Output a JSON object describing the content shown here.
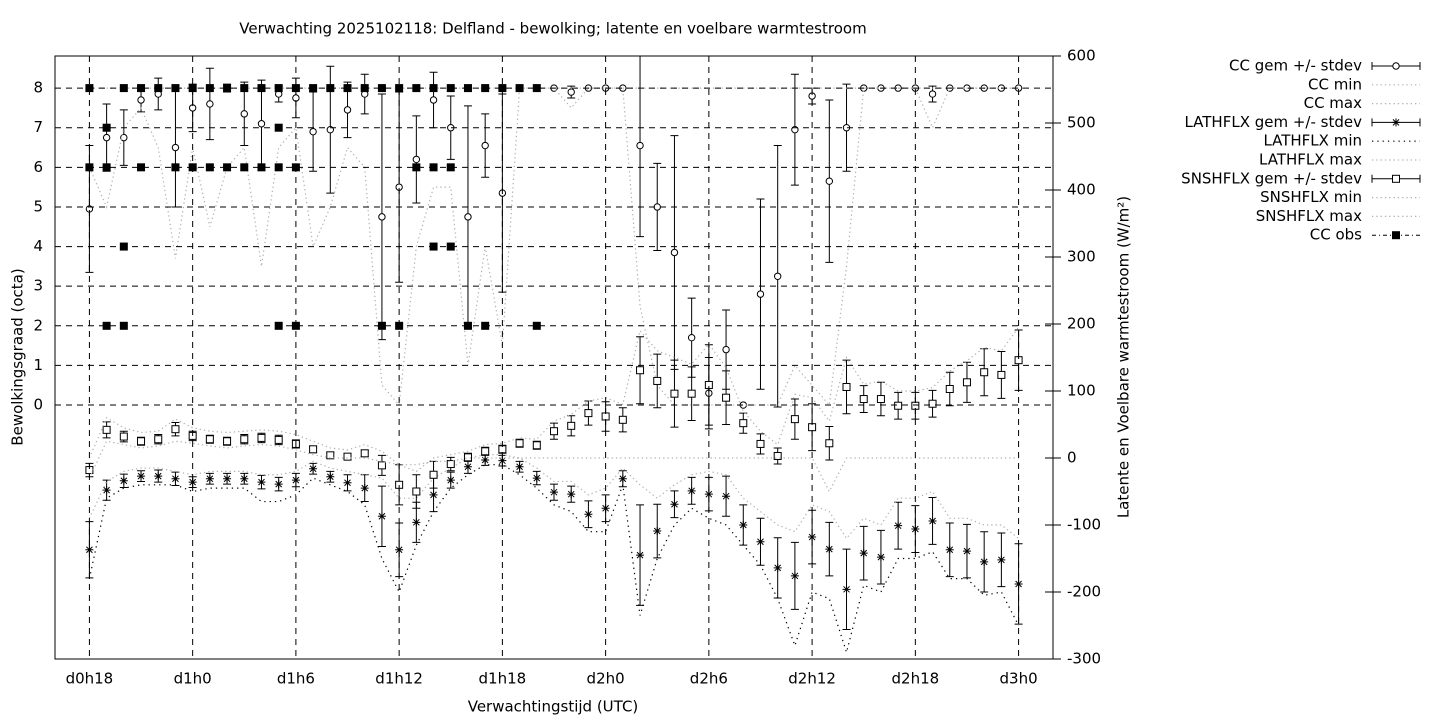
{
  "chart_data": {
    "type": "errorbar",
    "title": "Verwachting 2025102118: Delfland - bewolking; latente en voelbare warmtestroom",
    "xlabel": "Verwachtingstijd (UTC)",
    "ylabel": "Bewolkingsgraad (octa)",
    "y2label": "Latente en Voelbare warmtestroom (W/m²)",
    "x": [
      18,
      19,
      20,
      21,
      22,
      23,
      24,
      25,
      26,
      27,
      28,
      29,
      30,
      31,
      32,
      33,
      34,
      35,
      36,
      37,
      38,
      39,
      40,
      41,
      42,
      43,
      44,
      45,
      46,
      47,
      48,
      49,
      50,
      51,
      52,
      53,
      54,
      55,
      56,
      57,
      58,
      59,
      60,
      61,
      62,
      63,
      64,
      65,
      66,
      67,
      68,
      69,
      70,
      71,
      72
    ],
    "xlim": [
      16,
      74
    ],
    "xticks": [
      {
        "value": 18,
        "label": "d0h18"
      },
      {
        "value": 24,
        "label": "d1h0"
      },
      {
        "value": 30,
        "label": "d1h6"
      },
      {
        "value": 36,
        "label": "d1h12"
      },
      {
        "value": 42,
        "label": "d1h18"
      },
      {
        "value": 48,
        "label": "d2h0"
      },
      {
        "value": 54,
        "label": "d2h6"
      },
      {
        "value": 60,
        "label": "d2h12"
      },
      {
        "value": 66,
        "label": "d2h18"
      },
      {
        "value": 72,
        "label": "d3h0"
      }
    ],
    "ylim": [
      -6.41,
      8.81
    ],
    "yticks": [
      0,
      1,
      2,
      3,
      4,
      5,
      6,
      7,
      8
    ],
    "y2lim": [
      -300,
      600
    ],
    "y2ticks": [
      -300,
      -200,
      -100,
      0,
      100,
      200,
      300,
      400,
      500,
      600
    ],
    "grid": true,
    "legend": "outside-right",
    "series": [
      {
        "name": "CC gem +/- stdev",
        "color": "#000000",
        "style": "errorbars",
        "marker": "circle",
        "axis": "y",
        "values": [
          4.95,
          6.75,
          6.75,
          7.7,
          7.85,
          6.5,
          7.5,
          7.6,
          8,
          7.35,
          7.1,
          7.85,
          7.75,
          6.9,
          6.95,
          7.45,
          7.85,
          4.75,
          5.5,
          6.2,
          7.7,
          7.0,
          4.75,
          6.55,
          5.35,
          8,
          8,
          8,
          7.9,
          8,
          8,
          8,
          6.55,
          5.0,
          3.85,
          1.7,
          0.3,
          1.4,
          0,
          2.8,
          3.25,
          6.95,
          7.8,
          5.65,
          7.0,
          8,
          8,
          8,
          8,
          7.85,
          8,
          8,
          8,
          8,
          8
        ],
        "errors": [
          1.6,
          0.85,
          0.7,
          0.3,
          0.4,
          1.5,
          0.6,
          0.9,
          0.1,
          0.8,
          1.1,
          0.2,
          0.5,
          1.0,
          1.6,
          0.7,
          0.5,
          3.1,
          2.4,
          1.1,
          0.7,
          0.8,
          2.8,
          0.8,
          2.5,
          0,
          0,
          0,
          0.15,
          0,
          0,
          0,
          2.3,
          1.1,
          2.95,
          1.0,
          0.9,
          1.0,
          0,
          2.4,
          3.3,
          1.4,
          0.2,
          2.05,
          1.1,
          0,
          0,
          0,
          0,
          0.2,
          0,
          0,
          0,
          0,
          0
        ]
      },
      {
        "name": "CC min",
        "color": "#b0b0b0",
        "style": "dotted",
        "axis": "y",
        "values": [
          6,
          5,
          7,
          7.5,
          6.5,
          3.7,
          6.5,
          4.5,
          6,
          6.5,
          3.5,
          6.5,
          7,
          4,
          5,
          6.5,
          6,
          0.5,
          0,
          4,
          5.5,
          5.5,
          1,
          4,
          1.5,
          8,
          8,
          8,
          7.5,
          8,
          8,
          8,
          2.5,
          0.5,
          0,
          0,
          0,
          0,
          0,
          0,
          0,
          1,
          0.5,
          0,
          3.5,
          8,
          8,
          8,
          8,
          7,
          8,
          8,
          8,
          8,
          8
        ]
      },
      {
        "name": "CC max",
        "color": "#b0b0b0",
        "style": "dotted",
        "axis": "y",
        "values": [
          8,
          8,
          8,
          8,
          8,
          8,
          8,
          8,
          8,
          8,
          8,
          8,
          8,
          8,
          8,
          8,
          8,
          8,
          8,
          8,
          8,
          8,
          8,
          8,
          8,
          8,
          8,
          8,
          8,
          8,
          8,
          8,
          8,
          8,
          8,
          8,
          8,
          8,
          8,
          8,
          8,
          8,
          8,
          8,
          8,
          8,
          8,
          8,
          8,
          8,
          8,
          8,
          8,
          8,
          8
        ]
      },
      {
        "name": "LATHFLX gem +/- stdev",
        "color": "#000000",
        "style": "errorbars",
        "marker": "asterisk",
        "axis": "y2",
        "values": [
          -137,
          -48,
          -34,
          -27,
          -27,
          -31,
          -36,
          -31,
          -31,
          -31,
          -36,
          -39,
          -33,
          -16,
          -28,
          -37,
          -45,
          -87,
          -137,
          -96,
          -55,
          -33,
          -13,
          -3,
          -4,
          -13,
          -30,
          -51,
          -54,
          -84,
          -75,
          -31,
          -145,
          -109,
          -69,
          -49,
          -54,
          -57,
          -100,
          -125,
          -164,
          -176,
          -118,
          -136,
          -196,
          -142,
          -148,
          -101,
          -106,
          -94,
          -137,
          -139,
          -155,
          -152,
          -188
        ],
        "errors": [
          42,
          15,
          10,
          8,
          9,
          10,
          8,
          8,
          8,
          8,
          10,
          10,
          10,
          8,
          8,
          12,
          20,
          45,
          40,
          30,
          25,
          12,
          10,
          8,
          8,
          8,
          10,
          12,
          12,
          20,
          20,
          12,
          75,
          40,
          20,
          20,
          25,
          30,
          30,
          35,
          45,
          50,
          40,
          40,
          60,
          40,
          40,
          35,
          35,
          35,
          40,
          40,
          45,
          40,
          60
        ]
      },
      {
        "name": "LATHFLX min",
        "color": "#000000",
        "style": "dotted",
        "axis": "y2",
        "values": [
          -180,
          -60,
          -45,
          -40,
          -40,
          -40,
          -50,
          -45,
          -45,
          -45,
          -65,
          -65,
          -55,
          -30,
          -40,
          -50,
          -70,
          -150,
          -200,
          -130,
          -80,
          -45,
          -25,
          -10,
          -10,
          -25,
          -45,
          -70,
          -80,
          -110,
          -110,
          -40,
          -235,
          -150,
          -100,
          -75,
          -90,
          -100,
          -130,
          -160,
          -210,
          -280,
          -200,
          -210,
          -290,
          -190,
          -200,
          -150,
          -150,
          -140,
          -180,
          -180,
          -205,
          -200,
          -250
        ]
      },
      {
        "name": "LATHFLX max",
        "color": "#b0b0b0",
        "style": "dotted",
        "axis": "y2",
        "values": [
          -90,
          -35,
          -20,
          -15,
          -15,
          -20,
          -25,
          -20,
          -20,
          -20,
          -25,
          -25,
          -20,
          -5,
          -15,
          -20,
          -25,
          -30,
          -60,
          -60,
          -30,
          -15,
          0,
          5,
          5,
          0,
          -15,
          -35,
          -35,
          -55,
          -45,
          -15,
          -40,
          -60,
          -40,
          -25,
          -20,
          -25,
          -60,
          -80,
          -100,
          -110,
          -70,
          -80,
          -120,
          -90,
          -100,
          -60,
          -60,
          -50,
          -90,
          -90,
          -100,
          -100,
          -120
        ]
      },
      {
        "name": "SNSHFLX gem +/- stdev",
        "color": "#000000",
        "style": "errorbars",
        "marker": "square",
        "axis": "y2",
        "values": [
          -18,
          42,
          32,
          25,
          28,
          43,
          33,
          28,
          25,
          28,
          30,
          27,
          21,
          13,
          4,
          2,
          7,
          -11,
          -40,
          -50,
          -25,
          -9,
          1,
          10,
          13,
          22,
          19,
          40,
          48,
          67,
          62,
          57,
          131,
          115,
          96,
          96,
          109,
          90,
          52,
          21,
          3,
          58,
          46,
          22,
          106,
          88,
          88,
          78,
          78,
          81,
          103,
          113,
          128,
          124,
          146
        ],
        "errors": [
          10,
          12,
          8,
          6,
          7,
          10,
          7,
          6,
          6,
          7,
          7,
          7,
          6,
          5,
          4,
          4,
          5,
          15,
          30,
          25,
          20,
          10,
          6,
          6,
          6,
          6,
          6,
          12,
          15,
          18,
          22,
          18,
          50,
          40,
          50,
          40,
          60,
          40,
          15,
          15,
          12,
          30,
          35,
          25,
          40,
          20,
          25,
          20,
          20,
          20,
          25,
          30,
          35,
          35,
          45
        ]
      },
      {
        "name": "SNSHFLX min",
        "color": "#b0b0b0",
        "style": "dotted",
        "axis": "y2",
        "values": [
          -30,
          25,
          20,
          15,
          18,
          25,
          22,
          18,
          15,
          18,
          20,
          18,
          12,
          5,
          0,
          0,
          0,
          -5,
          -10,
          -10,
          -5,
          -5,
          0,
          0,
          0,
          0,
          0,
          0,
          0,
          0,
          0,
          0,
          0,
          0,
          0,
          0,
          0,
          0,
          0,
          0,
          0,
          0,
          0,
          -50,
          0,
          0,
          0,
          0,
          0,
          0,
          0,
          0,
          0,
          0,
          0
        ]
      },
      {
        "name": "SNSHFLX max",
        "color": "#b0b0b0",
        "style": "dotted",
        "axis": "y2",
        "values": [
          0,
          60,
          45,
          38,
          40,
          58,
          45,
          40,
          38,
          40,
          42,
          40,
          35,
          25,
          15,
          12,
          20,
          10,
          -10,
          -20,
          0,
          5,
          10,
          20,
          22,
          30,
          28,
          55,
          65,
          85,
          90,
          80,
          190,
          160,
          150,
          140,
          170,
          135,
          70,
          40,
          20,
          95,
          90,
          55,
          150,
          110,
          115,
          100,
          100,
          105,
          130,
          145,
          165,
          160,
          195
        ]
      },
      {
        "name": "CC obs",
        "color": "#000000",
        "style": "points",
        "marker": "filled-square",
        "axis": "y",
        "x": [
          18,
          18,
          19,
          19,
          19,
          20,
          20,
          20,
          21,
          21,
          22,
          23,
          23,
          24,
          24,
          25,
          25,
          26,
          26,
          27,
          27,
          28,
          28,
          29,
          29,
          29,
          29,
          30,
          30,
          30,
          31,
          32,
          33,
          34,
          35,
          35,
          36,
          36,
          37,
          37,
          38,
          38,
          38,
          39,
          39,
          39,
          40,
          40,
          41,
          41,
          42,
          43,
          44,
          44
        ],
        "values": [
          8,
          6,
          7,
          6,
          2,
          8,
          4,
          2,
          8,
          6,
          8,
          8,
          6,
          8,
          6,
          8,
          6,
          8,
          6,
          8,
          6,
          8,
          6,
          8,
          7,
          6,
          2,
          8,
          6,
          2,
          8,
          8,
          8,
          8,
          8,
          2,
          8,
          2,
          8,
          6,
          8,
          6,
          4,
          8,
          6,
          4,
          8,
          2,
          8,
          2,
          8,
          8,
          8,
          2
        ]
      }
    ]
  }
}
